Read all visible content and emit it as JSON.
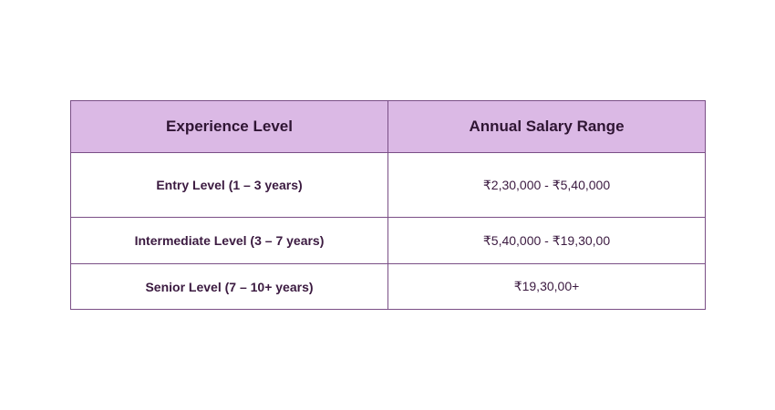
{
  "table": {
    "headers": [
      "Experience Level",
      "Annual Salary Range"
    ],
    "rows": [
      {
        "level": "Entry Level (1 – 3 years)",
        "range": "₹2,30,000 - ₹5,40,000"
      },
      {
        "level": "Intermediate Level (3 – 7 years)",
        "range": "₹5,40,000 - ₹19,30,00"
      },
      {
        "level": "Senior Level (7 – 10+ years)",
        "range": "₹19,30,00+"
      }
    ]
  },
  "colors": {
    "header_background": "#dbb9e5",
    "border": "#7a4f86",
    "text": "#3b1a40"
  }
}
